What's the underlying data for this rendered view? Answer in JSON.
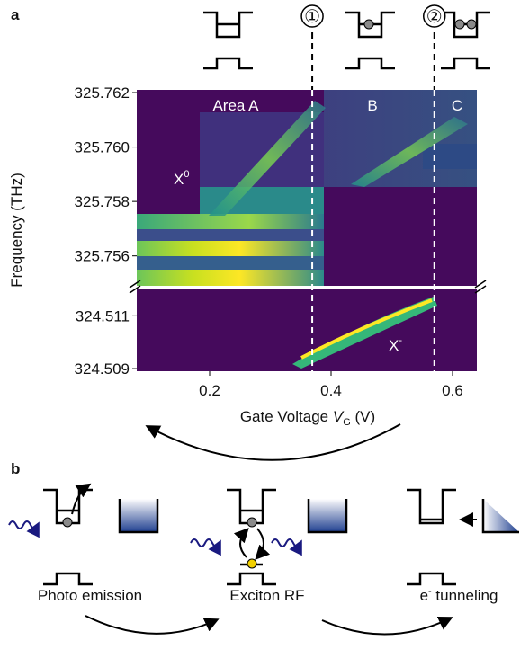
{
  "panel_a": {
    "label": "a",
    "state_markers": [
      "①",
      "②"
    ],
    "dashed_lines_x": [
      0.369,
      0.57
    ],
    "annotations": {
      "area_a": "Area A",
      "b": "B",
      "c": "C",
      "x0": {
        "text": "X",
        "sup": "0"
      },
      "xminus": {
        "text": "X",
        "sup": "-"
      }
    },
    "x_axis": {
      "label": {
        "text": "Gate Voltage ",
        "var": "V",
        "sub": "G",
        "unit": " (V)"
      },
      "xlim": [
        0.08,
        0.64
      ],
      "xticks": [
        0.2,
        0.4,
        0.6
      ]
    },
    "y_axis": {
      "label": "Frequency (THz)",
      "upper": {
        "ylim": [
          325.7549,
          325.7621
        ],
        "yticks": [
          325.762,
          {
            "value": 325.76,
            "label": "325.760"
          },
          325.758,
          325.756
        ]
      },
      "lower": {
        "ylim": [
          324.5089,
          324.512
        ],
        "yticks": [
          324.511,
          324.509
        ]
      }
    }
  },
  "panel_b": {
    "label": "b",
    "captions": {
      "photo": "Photo emission",
      "exciton": "Exciton RF",
      "tunneling": {
        "text": "e",
        "sup": "-",
        "rest": " tunneling"
      }
    }
  }
}
